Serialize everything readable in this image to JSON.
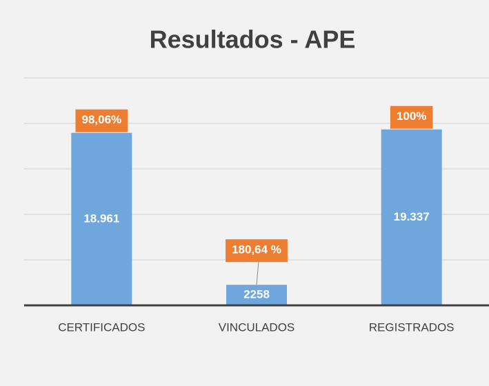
{
  "chart_data": {
    "type": "bar",
    "title": "Resultados - APE",
    "categories": [
      "CERTIFICADOS",
      "VINCULADOS",
      "REGISTRADOS"
    ],
    "values": [
      18961,
      2258,
      19337
    ],
    "value_labels": [
      "18.961",
      "2258",
      "19.337"
    ],
    "annotations": [
      "98,06%",
      "180,64 %",
      "100%"
    ],
    "color": "#6fa6dc",
    "annotation_color": "#ed7d31",
    "ylim": [
      0,
      25000
    ],
    "yticks": [
      0,
      5000,
      10000,
      15000,
      20000,
      25000
    ],
    "grid": true
  }
}
